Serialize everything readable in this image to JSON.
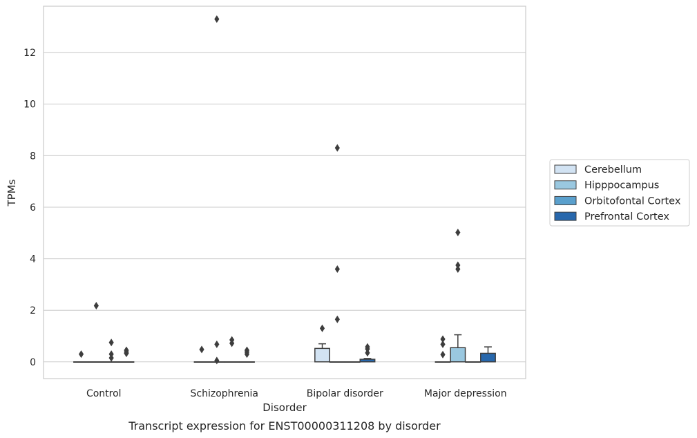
{
  "caption": "Transcript expression for ENST00000311208 by disorder",
  "chart_data": {
    "type": "box",
    "xlabel": "Disorder",
    "ylabel": "TPMs",
    "ylim": [
      -0.65,
      13.8
    ],
    "yticks": [
      0,
      2,
      4,
      6,
      8,
      10,
      12
    ],
    "grid": "horizontal",
    "legend_placement": "right",
    "categories": [
      "Control",
      "Schizophrenia",
      "Bipolar disorder",
      "Major depression"
    ],
    "series": [
      {
        "name": "Cerebellum",
        "color": "#d2e3f3",
        "boxes": [
          {
            "q1": 0,
            "median": 0,
            "q3": 0,
            "whisker_low": 0,
            "whisker_high": 0,
            "outliers": [
              0.3
            ]
          },
          {
            "q1": 0,
            "median": 0,
            "q3": 0,
            "whisker_low": 0,
            "whisker_high": 0,
            "outliers": [
              0.48
            ]
          },
          {
            "q1": 0,
            "median": 0,
            "q3": 0.52,
            "whisker_low": 0,
            "whisker_high": 0.7,
            "outliers": [
              1.3
            ]
          },
          {
            "q1": 0,
            "median": 0,
            "q3": 0,
            "whisker_low": 0,
            "whisker_high": 0,
            "outliers": [
              0.88,
              0.68,
              0.28
            ]
          }
        ]
      },
      {
        "name": "Hipppocampus",
        "color": "#9ac8e0",
        "boxes": [
          {
            "q1": 0,
            "median": 0,
            "q3": 0,
            "whisker_low": 0,
            "whisker_high": 0,
            "outliers": [
              2.18
            ]
          },
          {
            "q1": 0,
            "median": 0,
            "q3": 0,
            "whisker_low": 0,
            "whisker_high": 0,
            "outliers": [
              13.3,
              0.68,
              0.05
            ]
          },
          {
            "q1": 0,
            "median": 0,
            "q3": 0,
            "whisker_low": 0,
            "whisker_high": 0,
            "outliers": [
              8.3,
              3.6,
              1.65
            ]
          },
          {
            "q1": 0,
            "median": 0,
            "q3": 0.55,
            "whisker_low": 0,
            "whisker_high": 1.05,
            "outliers": [
              5.02,
              3.75,
              3.6
            ]
          }
        ]
      },
      {
        "name": "Orbitofontal Cortex",
        "color": "#5aa0cd",
        "boxes": [
          {
            "q1": 0,
            "median": 0,
            "q3": 0,
            "whisker_low": 0,
            "whisker_high": 0,
            "outliers": [
              0.75,
              0.3,
              0.15
            ]
          },
          {
            "q1": 0,
            "median": 0,
            "q3": 0,
            "whisker_low": 0,
            "whisker_high": 0,
            "outliers": [
              0.85,
              0.72
            ]
          },
          {
            "q1": 0,
            "median": 0,
            "q3": 0,
            "whisker_low": 0,
            "whisker_high": 0,
            "outliers": []
          },
          {
            "q1": 0,
            "median": 0,
            "q3": 0,
            "whisker_low": 0,
            "whisker_high": 0,
            "outliers": []
          }
        ]
      },
      {
        "name": "Prefrontal Cortex",
        "color": "#2767ac",
        "boxes": [
          {
            "q1": 0,
            "median": 0,
            "q3": 0,
            "whisker_low": 0,
            "whisker_high": 0,
            "outliers": [
              0.45,
              0.38,
              0.33
            ]
          },
          {
            "q1": 0,
            "median": 0,
            "q3": 0,
            "whisker_low": 0,
            "whisker_high": 0,
            "outliers": [
              0.45,
              0.38,
              0.3
            ]
          },
          {
            "q1": 0,
            "median": 0,
            "q3": 0.1,
            "whisker_low": 0,
            "whisker_high": 0.13,
            "outliers": [
              0.58,
              0.5,
              0.35
            ]
          },
          {
            "q1": 0,
            "median": 0,
            "q3": 0.33,
            "whisker_low": 0,
            "whisker_high": 0.58,
            "outliers": []
          }
        ]
      }
    ]
  }
}
